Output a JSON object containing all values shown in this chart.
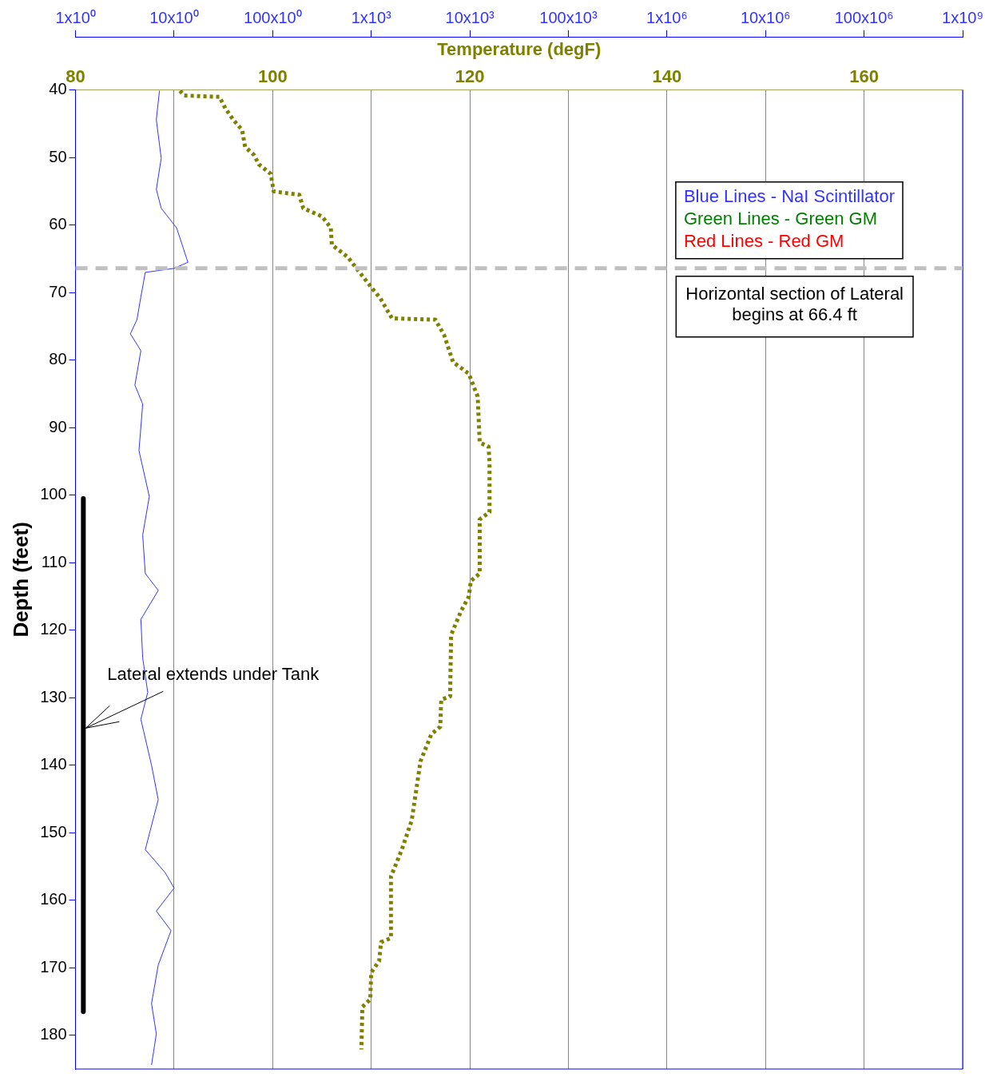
{
  "chart_data": {
    "type": "line",
    "xlim": [
      1,
      1000000000
    ],
    "log": "x",
    "xticks": [
      {
        "value": 1,
        "label": "1x10⁰"
      },
      {
        "value": 10,
        "label": "10x10⁰"
      },
      {
        "value": 100,
        "label": "100x10⁰"
      },
      {
        "value": 1000,
        "label": "1x10³"
      },
      {
        "value": 10000,
        "label": "10x10³"
      },
      {
        "value": 100000,
        "label": "100x10³"
      },
      {
        "value": 1000000,
        "label": "1x10⁶"
      },
      {
        "value": 10000000,
        "label": "10x10⁶"
      },
      {
        "value": 100000000,
        "label": "100x10⁶"
      },
      {
        "value": 1000000000,
        "label": "1x10⁹"
      }
    ],
    "x2lim": [
      80,
      170
    ],
    "x2ticks": [
      80,
      100,
      120,
      140,
      160
    ],
    "x2label": "Temperature (degF)",
    "ylim": [
      185,
      40
    ],
    "yticks": [
      40,
      50,
      60,
      70,
      80,
      90,
      100,
      110,
      120,
      130,
      140,
      150,
      160,
      170,
      180
    ],
    "ylabel": "Depth (feet)",
    "grid": "x",
    "legend": "top right",
    "marker": "none",
    "series": [
      {
        "name": "Blue Lines - NaI Scintillator",
        "color": "#3333ff",
        "line_style": "solid",
        "x": [
          7.1,
          6.6,
          7.4,
          6.6,
          7.4,
          10.6,
          13.8,
          10,
          5.1,
          4.6,
          4.2,
          3.6,
          4.6,
          4.0,
          4.8,
          4.4,
          5.6,
          4.8,
          5.1,
          6.9,
          4.6,
          4.8,
          5.4,
          4.6,
          5.9,
          6.9,
          5.1,
          8.1,
          10,
          6.6,
          9.3,
          6.9,
          5.9,
          6.6,
          5.9
        ],
        "values": [
          40.1,
          44.4,
          50.1,
          54.7,
          57.5,
          60.4,
          65.5,
          66.4,
          67.0,
          70.6,
          74.0,
          76.1,
          78.6,
          83.7,
          86.5,
          93.4,
          100.2,
          105.9,
          111.6,
          114.1,
          118.4,
          124.1,
          129.2,
          133.2,
          140.0,
          145.1,
          152.5,
          155.9,
          158.2,
          161.6,
          164.5,
          169.6,
          175.3,
          179.8,
          184.4
        ]
      },
      {
        "name": "Green Lines - Green GM",
        "color": "#008000"
      },
      {
        "name": "Red Lines - Red GM",
        "color": "#ff0000"
      },
      {
        "color": "#808000",
        "axis": "x2",
        "line_style": "dotted",
        "x": [
          90.6,
          91.0,
          94.6,
          95.2,
          96.0,
          96.9,
          97.2,
          98.1,
          98.6,
          99.8,
          100.1,
          102.7,
          103.1,
          105.0,
          105.9,
          106.0,
          107.6,
          108.5,
          110.0,
          110.9,
          112.1,
          116.5,
          117.4,
          118.3,
          119.9,
          120.8,
          121.0,
          121.9,
          122.0,
          122.0,
          121.0,
          121.0,
          120.1,
          119.9,
          119.1,
          118.1,
          118.0,
          117.1,
          117.0,
          116.1,
          115.0,
          114.1,
          113.1,
          112.0,
          112.0,
          111.0,
          110.8,
          110.0,
          109.9,
          109.1,
          109.0
        ],
        "values": [
          40.1,
          40.8,
          41.0,
          42.7,
          44.4,
          45.9,
          48.4,
          49.6,
          51.0,
          52.4,
          55.0,
          55.5,
          57.5,
          58.7,
          60.4,
          62.9,
          64.7,
          66.4,
          69.2,
          70.8,
          73.8,
          74.0,
          76.3,
          80.3,
          82.0,
          85.4,
          92.2,
          92.8,
          95.1,
          102.5,
          103.6,
          111.6,
          112.7,
          115.0,
          117.2,
          120.7,
          129.8,
          130.3,
          134.3,
          135.4,
          139.4,
          148.2,
          152.5,
          156.5,
          165.6,
          166.2,
          169.0,
          170.7,
          174.7,
          175.8,
          182.1
        ]
      },
      {
        "color": "#000000",
        "line_style": "solid",
        "x": [
          1.2,
          1.2
        ],
        "values": [
          100.5,
          176.5
        ]
      }
    ],
    "ref_lines": [
      {
        "axis": "y",
        "value": 66.4,
        "label": "Horizontal section of Lateral\nbegins at 66.4 ft",
        "color": "#c0c0c0",
        "line_style": "dashed"
      }
    ],
    "annotations": [
      {
        "text": "Lateral extends under Tank",
        "x": 1.2,
        "y": 134.5
      }
    ]
  }
}
